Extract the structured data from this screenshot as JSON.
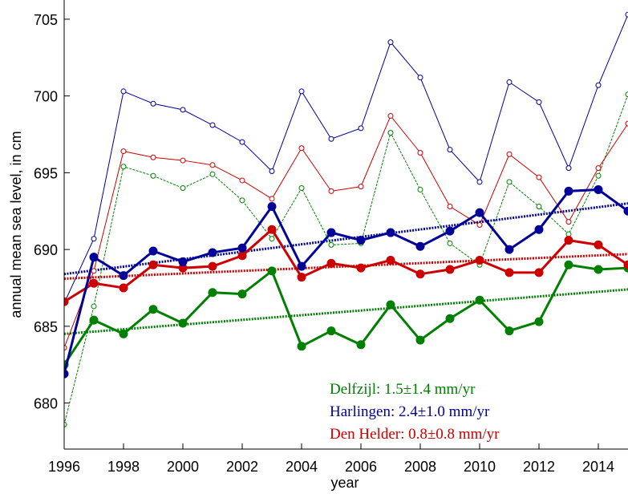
{
  "chart_data": {
    "type": "line",
    "xlabel": "year",
    "ylabel": "annual mean sea level, in cm",
    "x": [
      1996,
      1997,
      1998,
      1999,
      2000,
      2001,
      2002,
      2003,
      2004,
      2005,
      2006,
      2007,
      2008,
      2009,
      2010,
      2011,
      2012,
      2013,
      2014,
      2015
    ],
    "series": [
      {
        "color": "#008000",
        "linewidth": 1,
        "marker": "open",
        "dash": "3,1.5",
        "values": [
          678.6,
          686.3,
          695.4,
          694.8,
          694.0,
          694.9,
          693.2,
          690.7,
          694.0,
          690.3,
          690.4,
          697.6,
          693.9,
          690.4,
          689.0,
          694.4,
          692.8,
          691.0,
          694.8,
          700.1
        ]
      },
      {
        "color": "#cc0000",
        "linewidth": 1,
        "marker": "open",
        "values": [
          683.6,
          688.6,
          696.4,
          696.0,
          695.8,
          695.5,
          694.5,
          693.3,
          696.6,
          693.8,
          694.1,
          698.7,
          696.3,
          692.8,
          691.6,
          696.2,
          694.7,
          691.8,
          695.3,
          698.2
        ]
      },
      {
        "color": "#000099",
        "linewidth": 1,
        "marker": "open",
        "values": [
          686.5,
          690.7,
          700.3,
          699.5,
          699.1,
          698.1,
          697.0,
          695.1,
          700.3,
          697.2,
          697.9,
          703.5,
          701.2,
          696.5,
          694.4,
          700.9,
          699.6,
          695.3,
          700.7,
          705.3
        ]
      },
      {
        "color": "#008000",
        "linewidth": 3,
        "marker": "filled",
        "values": [
          682.5,
          685.4,
          684.5,
          686.1,
          685.2,
          687.2,
          687.1,
          688.6,
          683.7,
          684.7,
          683.8,
          686.4,
          684.1,
          685.5,
          686.7,
          684.7,
          685.3,
          689.0,
          688.7,
          688.8
        ]
      },
      {
        "color": "#cc0000",
        "linewidth": 3,
        "marker": "filled",
        "values": [
          686.6,
          687.8,
          687.5,
          689.0,
          688.8,
          688.9,
          689.6,
          691.3,
          688.2,
          689.1,
          688.8,
          689.3,
          688.4,
          688.7,
          689.3,
          688.5,
          688.5,
          690.6,
          690.3,
          689.0
        ]
      },
      {
        "color": "#000099",
        "linewidth": 3,
        "marker": "filled",
        "values": [
          681.9,
          689.5,
          688.3,
          689.9,
          689.2,
          689.8,
          690.1,
          692.8,
          688.9,
          691.1,
          690.6,
          691.1,
          690.2,
          691.2,
          692.4,
          690.0,
          691.3,
          693.8,
          693.9,
          692.5
        ]
      }
    ],
    "trends": [
      {
        "color": "#008000",
        "x": [
          1996,
          2015
        ],
        "values": [
          684.5,
          687.4
        ]
      },
      {
        "color": "#cc0000",
        "x": [
          1996,
          2015
        ],
        "values": [
          688.1,
          689.7
        ]
      },
      {
        "color": "#000099",
        "x": [
          1996,
          2015
        ],
        "values": [
          688.4,
          693.0
        ]
      }
    ],
    "annotations": [
      {
        "text": "Delfzijl: 1.5±1.4 mm/yr",
        "color": "#008000"
      },
      {
        "text": "Harlingen: 2.4±1.0 mm/yr",
        "color": "#000099"
      },
      {
        "text": "Den Helder: 0.8±0.8 mm/yr",
        "color": "#cc0000"
      }
    ],
    "xlim": [
      1996,
      2015
    ],
    "ylim": [
      677,
      706.25
    ],
    "xticks": [
      1996,
      1998,
      2000,
      2002,
      2004,
      2006,
      2008,
      2010,
      2012,
      2014
    ],
    "yticks": [
      680,
      685,
      690,
      695,
      700,
      705
    ]
  }
}
